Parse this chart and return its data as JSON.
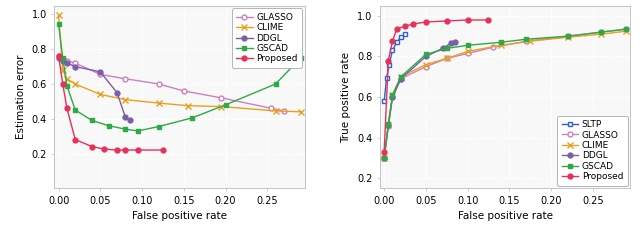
{
  "plot1": {
    "xlabel": "False positive rate",
    "ylabel": "Estimation error",
    "xlim": [
      -0.005,
      0.295
    ],
    "ylim": [
      0.0,
      1.05
    ],
    "xticks": [
      0.0,
      0.05,
      0.1,
      0.15,
      0.2,
      0.25
    ],
    "yticks": [
      0.2,
      0.4,
      0.6,
      0.8,
      1.0
    ],
    "series": {
      "GLASSO": {
        "x": [
          0.0,
          0.005,
          0.01,
          0.02,
          0.05,
          0.08,
          0.12,
          0.15,
          0.195,
          0.255,
          0.27
        ],
        "y": [
          0.76,
          0.745,
          0.735,
          0.72,
          0.655,
          0.63,
          0.6,
          0.56,
          0.52,
          0.46,
          0.445
        ],
        "color": "#cc80c0",
        "marker": "o",
        "markerfacecolor": "white",
        "linestyle": "-",
        "markersize": 3.5
      },
      "CLIME": {
        "x": [
          0.0,
          0.005,
          0.01,
          0.02,
          0.05,
          0.08,
          0.12,
          0.155,
          0.195,
          0.26,
          0.29
        ],
        "y": [
          0.995,
          0.68,
          0.63,
          0.6,
          0.54,
          0.51,
          0.49,
          0.475,
          0.47,
          0.445,
          0.44
        ],
        "color": "#e8a020",
        "marker": "x",
        "markerfacecolor": "#e8a020",
        "linestyle": "-",
        "markersize": 4
      },
      "DDGL": {
        "x": [
          0.0,
          0.005,
          0.01,
          0.02,
          0.05,
          0.07,
          0.08,
          0.085
        ],
        "y": [
          0.75,
          0.73,
          0.72,
          0.7,
          0.67,
          0.55,
          0.41,
          0.39
        ],
        "color": "#7b5ea7",
        "marker": "o",
        "markerfacecolor": "#7b5ea7",
        "linestyle": "-",
        "markersize": 3.5
      },
      "GSCAD": {
        "x": [
          0.0,
          0.005,
          0.01,
          0.02,
          0.04,
          0.06,
          0.08,
          0.095,
          0.12,
          0.16,
          0.2,
          0.26,
          0.29
        ],
        "y": [
          0.945,
          0.75,
          0.59,
          0.45,
          0.39,
          0.36,
          0.34,
          0.33,
          0.355,
          0.405,
          0.48,
          0.6,
          0.75
        ],
        "color": "#2eaa44",
        "marker": "s",
        "markerfacecolor": "#2eaa44",
        "linestyle": "-",
        "markersize": 3.5
      },
      "Proposed": {
        "x": [
          0.0,
          0.005,
          0.01,
          0.02,
          0.04,
          0.055,
          0.07,
          0.08,
          0.095,
          0.125
        ],
        "y": [
          0.76,
          0.6,
          0.46,
          0.28,
          0.24,
          0.225,
          0.22,
          0.22,
          0.22,
          0.22
        ],
        "color": "#e8305a",
        "marker": "o",
        "markerfacecolor": "#e8305a",
        "linestyle": "-",
        "markersize": 3.5
      }
    },
    "legend_loc": "upper right"
  },
  "plot2": {
    "xlabel": "False positive rate",
    "ylabel": "True positive rate",
    "xlim": [
      -0.005,
      0.295
    ],
    "ylim": [
      0.15,
      1.05
    ],
    "xticks": [
      0.0,
      0.05,
      0.1,
      0.15,
      0.2,
      0.25
    ],
    "yticks": [
      0.2,
      0.4,
      0.6,
      0.8,
      1.0
    ],
    "series": {
      "SLTP": {
        "x": [
          0.0,
          0.003,
          0.006,
          0.01,
          0.015,
          0.02,
          0.025
        ],
        "y": [
          0.58,
          0.695,
          0.76,
          0.83,
          0.87,
          0.895,
          0.91
        ],
        "color": "#3060c8",
        "marker": "s",
        "markerfacecolor": "white",
        "linestyle": "-",
        "markersize": 3.5
      },
      "GLASSO": {
        "x": [
          0.0,
          0.005,
          0.01,
          0.02,
          0.05,
          0.075,
          0.1,
          0.13,
          0.17,
          0.22,
          0.26,
          0.29
        ],
        "y": [
          0.3,
          0.455,
          0.6,
          0.69,
          0.75,
          0.79,
          0.815,
          0.845,
          0.875,
          0.9,
          0.92,
          0.935
        ],
        "color": "#cc80c0",
        "marker": "o",
        "markerfacecolor": "white",
        "linestyle": "-",
        "markersize": 3.5
      },
      "CLIME": {
        "x": [
          0.0,
          0.005,
          0.01,
          0.02,
          0.05,
          0.075,
          0.1,
          0.14,
          0.175,
          0.22,
          0.26,
          0.29
        ],
        "y": [
          0.3,
          0.46,
          0.61,
          0.7,
          0.76,
          0.79,
          0.825,
          0.855,
          0.875,
          0.895,
          0.91,
          0.925
        ],
        "color": "#e8a020",
        "marker": "x",
        "markerfacecolor": "#e8a020",
        "linestyle": "-",
        "markersize": 4
      },
      "DDGL": {
        "x": [
          0.0,
          0.005,
          0.01,
          0.02,
          0.05,
          0.07,
          0.08,
          0.085
        ],
        "y": [
          0.3,
          0.46,
          0.6,
          0.69,
          0.8,
          0.84,
          0.865,
          0.87
        ],
        "color": "#7b5ea7",
        "marker": "o",
        "markerfacecolor": "#7b5ea7",
        "linestyle": "-",
        "markersize": 3.5
      },
      "GSCAD": {
        "x": [
          0.0,
          0.005,
          0.01,
          0.02,
          0.05,
          0.075,
          0.1,
          0.14,
          0.17,
          0.22,
          0.26,
          0.29
        ],
        "y": [
          0.3,
          0.465,
          0.61,
          0.7,
          0.81,
          0.84,
          0.855,
          0.87,
          0.885,
          0.9,
          0.92,
          0.935
        ],
        "color": "#2eaa44",
        "marker": "s",
        "markerfacecolor": "#2eaa44",
        "linestyle": "-",
        "markersize": 3.5
      },
      "Proposed": {
        "x": [
          0.0,
          0.005,
          0.01,
          0.015,
          0.025,
          0.035,
          0.05,
          0.075,
          0.1,
          0.125
        ],
        "y": [
          0.33,
          0.78,
          0.875,
          0.935,
          0.95,
          0.96,
          0.97,
          0.975,
          0.98,
          0.98
        ],
        "color": "#e8305a",
        "marker": "o",
        "markerfacecolor": "#e8305a",
        "linestyle": "-",
        "markersize": 3.5
      }
    },
    "legend_loc": "lower right"
  },
  "background_color": "#ffffff",
  "facecolor": "#f8f8f8",
  "grid_color": "#ffffff",
  "grid_linestyle": "--",
  "fontsize": 7.5,
  "linewidth": 1.0
}
